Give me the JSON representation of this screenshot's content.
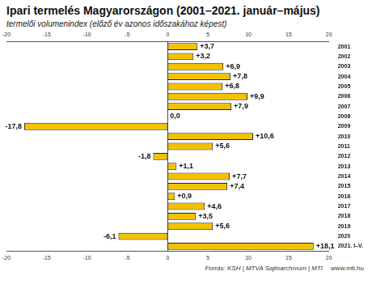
{
  "chart_data": {
    "type": "bar",
    "orientation": "horizontal",
    "title": "Ipari termelés Magyarországon (2001–2021. január–május)",
    "subtitle": "termelői volumenindex (előző év azonos időszakához képest)",
    "annotations": [
      "Forrás: KSH | MTVA Sajtóarchívum | MTI",
      "www.mti.hu"
    ],
    "categories": [
      "2001",
      "2002",
      "2003",
      "2004",
      "2005",
      "2006",
      "2007",
      "2008",
      "2009",
      "2010",
      "2011",
      "2012",
      "2013",
      "2014",
      "2015",
      "2016",
      "2017",
      "2018",
      "2019",
      "2020",
      "2021. I–V."
    ],
    "values": [
      3.7,
      3.2,
      6.9,
      7.8,
      6.8,
      9.9,
      7.9,
      0.0,
      -17.8,
      10.6,
      5.6,
      -1.8,
      1.1,
      7.7,
      7.4,
      0.9,
      4.6,
      3.5,
      5.6,
      -6.1,
      18.1
    ],
    "value_labels": [
      "+3,7",
      "+3,2",
      "+6,9",
      "+7,8",
      "+6,8",
      "+9,9",
      "+7,9",
      "0,0",
      "-17,8",
      "+10,6",
      "+5,6",
      "-1,8",
      "+1,1",
      "+7,7",
      "+7,4",
      "+0,9",
      "+4,6",
      "+3,5",
      "+5,6",
      "-6,1",
      "+18,1"
    ],
    "color": "#f2c200",
    "xlim": [
      -20,
      20
    ],
    "xticks": [
      -20,
      -15,
      -10,
      -5,
      0,
      5,
      10,
      15,
      20
    ],
    "grid": false,
    "data_labels": true
  }
}
